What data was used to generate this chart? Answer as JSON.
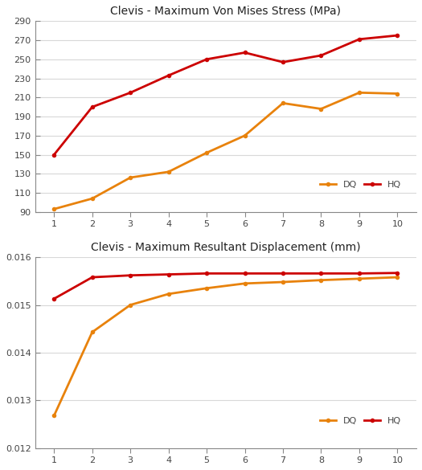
{
  "chart1": {
    "title": "Clevis - Maximum Von Mises Stress (MPa)",
    "x": [
      1,
      2,
      3,
      4,
      5,
      6,
      7,
      8,
      9,
      10
    ],
    "dq": [
      93,
      104,
      126,
      132,
      152,
      170,
      204,
      198,
      215,
      214
    ],
    "hq": [
      150,
      200,
      215,
      233,
      250,
      257,
      247,
      254,
      271,
      275
    ],
    "ylim": [
      90,
      290
    ],
    "yticks": [
      90,
      110,
      130,
      150,
      170,
      190,
      210,
      230,
      250,
      270,
      290
    ]
  },
  "chart2": {
    "title": "Clevis - Maximum Resultant Displacement (mm)",
    "x": [
      1,
      2,
      3,
      4,
      5,
      6,
      7,
      8,
      9,
      10
    ],
    "dq": [
      0.01268,
      0.01443,
      0.015,
      0.01523,
      0.01535,
      0.01545,
      0.01548,
      0.01552,
      0.01555,
      0.01558
    ],
    "hq": [
      0.01513,
      0.01558,
      0.01562,
      0.01564,
      0.01566,
      0.01566,
      0.01566,
      0.01566,
      0.01566,
      0.01567
    ],
    "ylim": [
      0.012,
      0.016
    ],
    "yticks": [
      0.012,
      0.013,
      0.014,
      0.015,
      0.016
    ]
  },
  "dq_color": "#E8820C",
  "hq_color": "#CC0000",
  "bg_color": "#FFFFFF",
  "grid_color": "#D8D8D8",
  "spine_color": "#888888",
  "line_width": 2.0,
  "marker": "o",
  "marker_size": 4,
  "tick_fontsize": 8,
  "title_fontsize": 10,
  "legend_fontsize": 8
}
